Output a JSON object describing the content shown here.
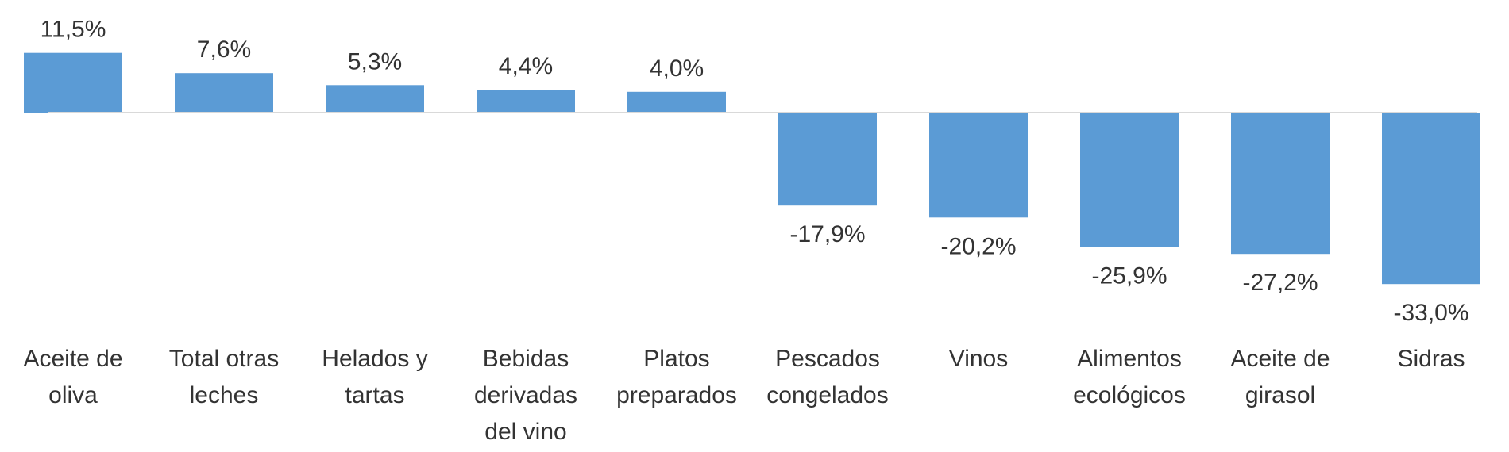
{
  "chart_data": {
    "type": "bar",
    "title": "",
    "xlabel": "",
    "ylabel": "",
    "ylim": [
      -33.0,
      11.5
    ],
    "categories": [
      [
        "Aceite de",
        "oliva"
      ],
      [
        "Total otras",
        "leches"
      ],
      [
        "Helados y",
        "tartas"
      ],
      [
        "Bebidas",
        "derivadas",
        "del vino"
      ],
      [
        "Platos",
        "preparados"
      ],
      [
        "Pescados",
        "congelados"
      ],
      [
        "Vinos"
      ],
      [
        "Alimentos",
        "ecológicos"
      ],
      [
        "Aceite de",
        "girasol"
      ],
      [
        "Sidras"
      ]
    ],
    "values": [
      11.5,
      7.6,
      5.3,
      4.4,
      4.0,
      -17.9,
      -20.2,
      -25.9,
      -27.2,
      -33.0
    ],
    "value_labels": [
      "11,5%",
      "7,6%",
      "5,3%",
      "4,4%",
      "4,0%",
      "-17,9%",
      "-20,2%",
      "-25,9%",
      "-27,2%",
      "-33,0%"
    ],
    "grid": false,
    "legend": "none",
    "colors": {
      "bar": "#5b9bd5",
      "axis": "#d9d9d9",
      "text": "#333333"
    }
  }
}
